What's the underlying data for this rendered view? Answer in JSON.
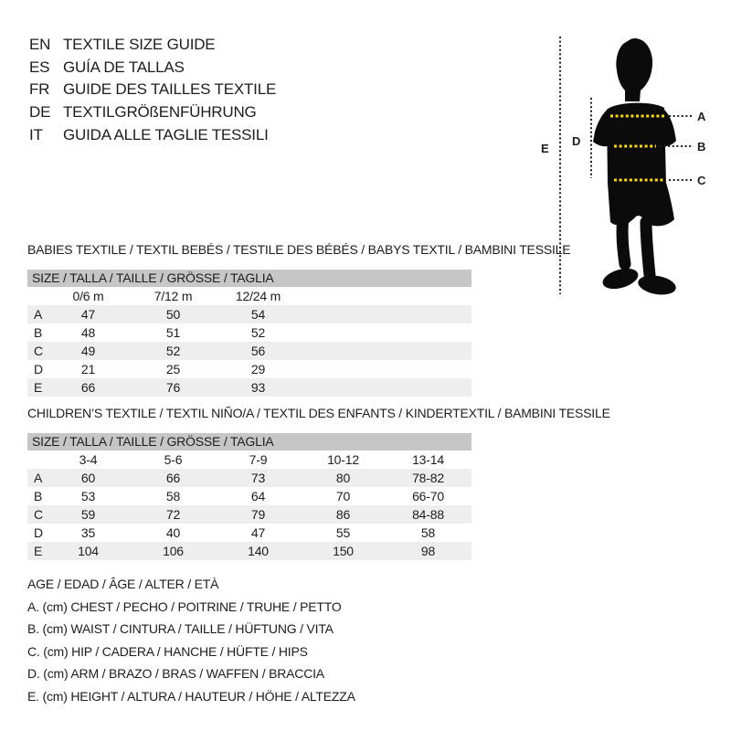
{
  "colors": {
    "text": "#1d1d1b",
    "table_header_bg": "#c6c6c6",
    "table_stripe_bg": "#eeeeee",
    "measure_line_yellow": "#ffd900",
    "silhouette_black": "#0b0b0b"
  },
  "language_guide": {
    "items": [
      {
        "code": "EN",
        "label": "TEXTILE SIZE GUIDE"
      },
      {
        "code": "ES",
        "label": "GUÍA DE TALLAS"
      },
      {
        "code": "FR",
        "label": "GUIDE DES TAILLES TEXTILE"
      },
      {
        "code": "DE",
        "label": "TEXTILGRÖßENFÜHRUNG"
      },
      {
        "code": "IT",
        "label": "GUIDA ALLE TAGLIE TESSILI"
      }
    ]
  },
  "diagram": {
    "labels": {
      "a": "A",
      "b": "B",
      "c": "C",
      "d": "D",
      "e": "E"
    }
  },
  "babies": {
    "title": "BABIES TEXTILE / TEXTIL BEBÉS / TESTILE DES BÉBÉS / BABYS TEXTIL / BAMBINI TESSILE",
    "table": {
      "header": "SIZE / TALLA / TAILLE / GRÖSSE / TAGLIA",
      "columns": [
        "0/6 m",
        "7/12 m",
        "12/24 m"
      ],
      "rows": [
        {
          "label": "A",
          "values": [
            "47",
            "50",
            "54"
          ]
        },
        {
          "label": "B",
          "values": [
            "48",
            "51",
            "52"
          ]
        },
        {
          "label": "C",
          "values": [
            "49",
            "52",
            "56"
          ]
        },
        {
          "label": "D",
          "values": [
            "21",
            "25",
            "29"
          ]
        },
        {
          "label": "E",
          "values": [
            "66",
            "76",
            "93"
          ]
        }
      ]
    }
  },
  "children": {
    "title": "CHILDREN’S TEXTILE / TEXTIL NIÑO/A / TEXTIL DES ENFANTS / KINDERTEXTIL / BAMBINI TESSILE",
    "table": {
      "header": "SIZE / TALLA / TAILLE / GRÖSSE / TAGLIA",
      "columns": [
        "3-4",
        "5-6",
        "7-9",
        "10-12",
        "13-14"
      ],
      "rows": [
        {
          "label": "A",
          "values": [
            "60",
            "66",
            "73",
            "80",
            "78-82"
          ]
        },
        {
          "label": "B",
          "values": [
            "53",
            "58",
            "64",
            "70",
            "66-70"
          ]
        },
        {
          "label": "C",
          "values": [
            "59",
            "72",
            "79",
            "86",
            "84-88"
          ]
        },
        {
          "label": "D",
          "values": [
            "35",
            "40",
            "47",
            "55",
            "58"
          ]
        },
        {
          "label": "E",
          "values": [
            "104",
            "106",
            "140",
            "150",
            "98"
          ]
        }
      ]
    }
  },
  "legend": {
    "lines": [
      "AGE / EDAD / ÂGE / ALTER / ETÀ",
      "A. (cm) CHEST / PECHO / POITRINE / TRUHE / PETTO",
      "B. (cm) WAIST / CINTURA / TAILLE / HÜFTUNG / VITA",
      "C. (cm) HIP / CADERA / HANCHE / HÜFTE / HIPS",
      "D. (cm) ARM / BRAZO / BRAS / WAFFEN / BRACCIA",
      "E. (cm) HEIGHT / ALTURA / HAUTEUR / HÖHE / ALTEZZA"
    ]
  }
}
